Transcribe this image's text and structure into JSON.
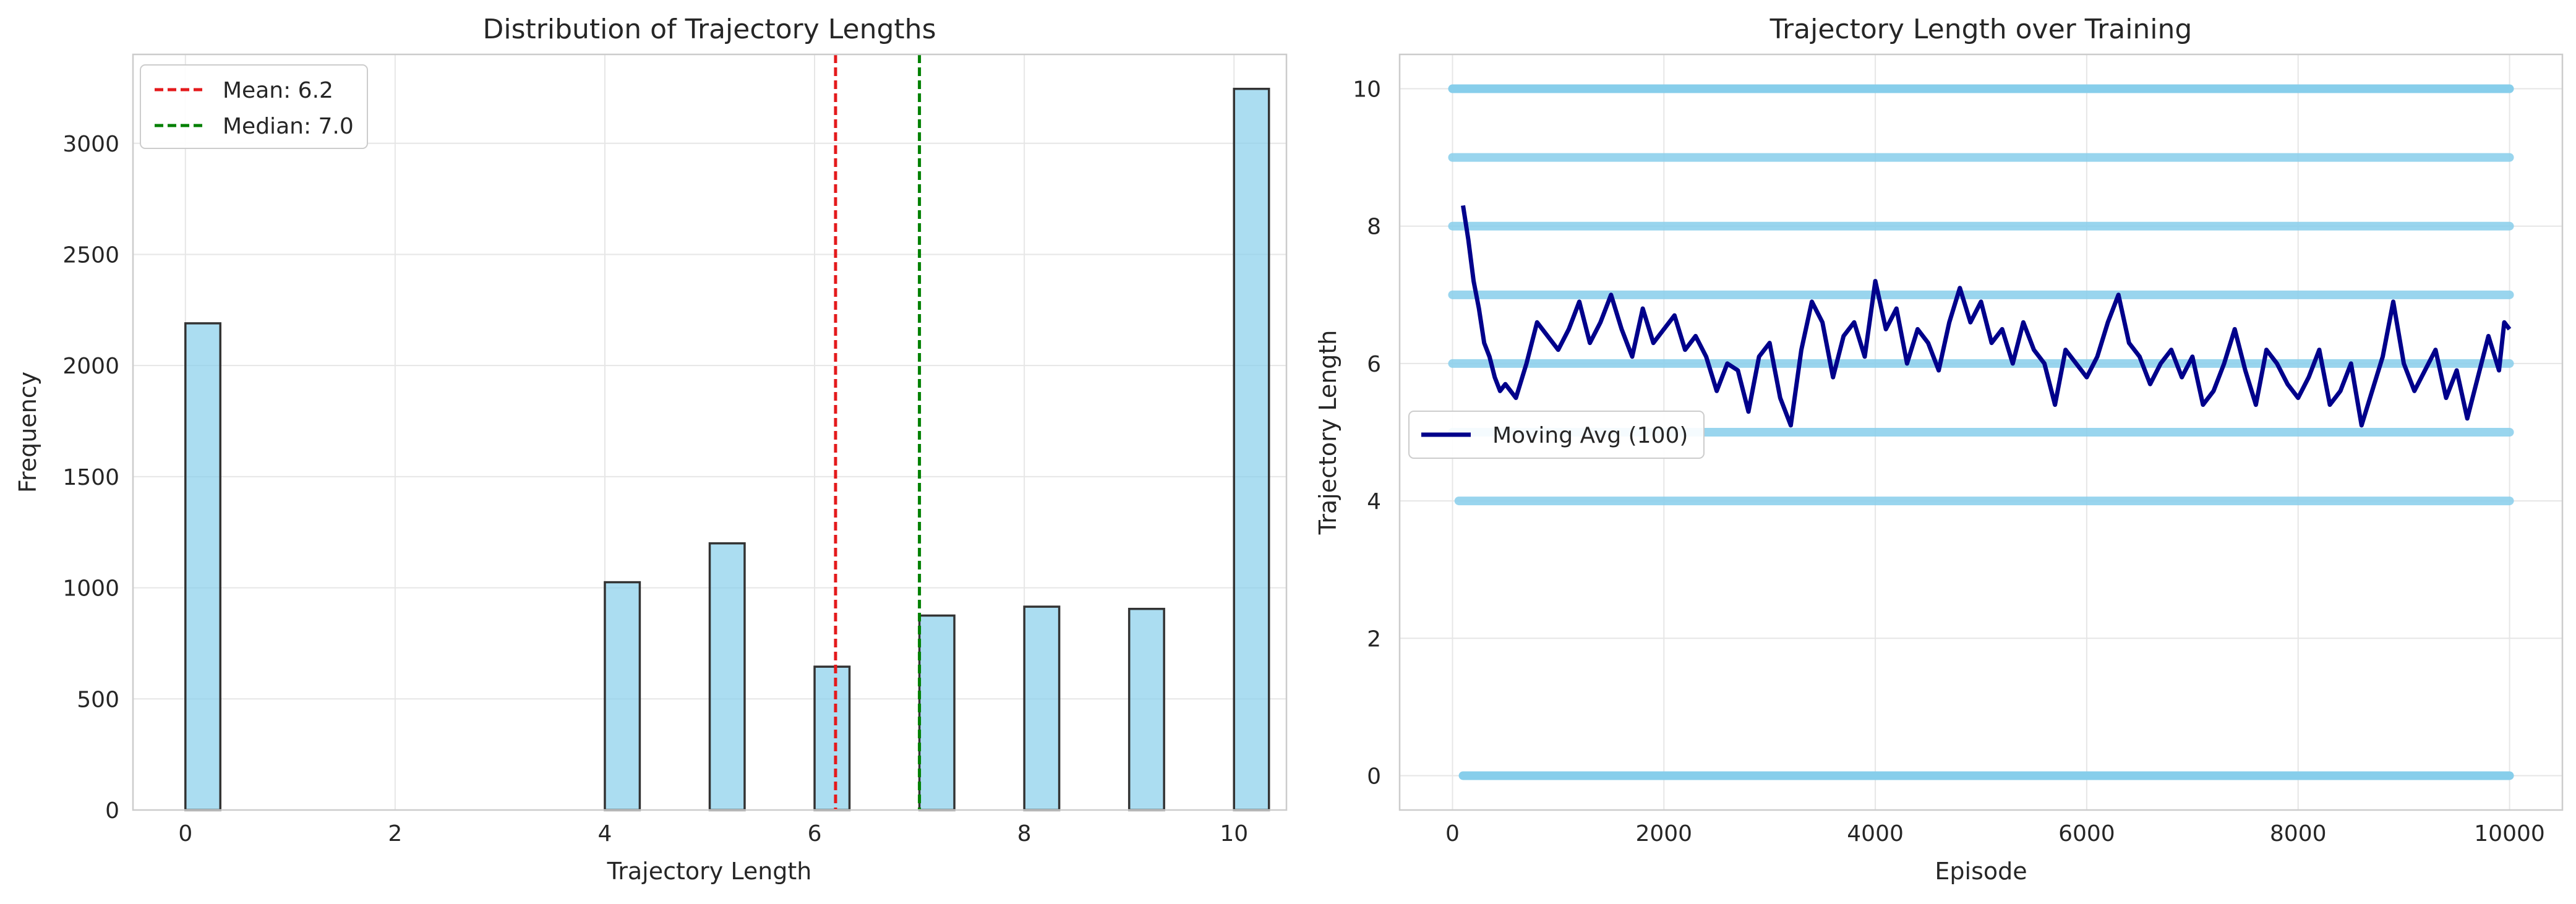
{
  "chart_data": [
    {
      "type": "bar",
      "title": "Distribution of Trajectory Lengths",
      "xlabel": "Trajectory Length",
      "ylabel": "Frequency",
      "xlim": [
        -0.5,
        10.5
      ],
      "ylim": [
        0,
        3400
      ],
      "xticks": [
        0,
        2,
        4,
        6,
        8,
        10
      ],
      "yticks": [
        0,
        500,
        1000,
        1500,
        2000,
        2500,
        3000
      ],
      "grid": true,
      "bar_color": "#87ceeb",
      "edge_color": "#333333",
      "bars": [
        {
          "x": 0,
          "value": 2190
        },
        {
          "x": 4,
          "value": 1025
        },
        {
          "x": 5,
          "value": 1200
        },
        {
          "x": 6,
          "value": 645
        },
        {
          "x": 7,
          "value": 875
        },
        {
          "x": 8,
          "value": 915
        },
        {
          "x": 9,
          "value": 905
        },
        {
          "x": 10,
          "value": 3245
        }
      ],
      "lines": [
        {
          "name": "Mean: 6.2",
          "x": 6.2,
          "color": "#e41a1c",
          "style": "dashed"
        },
        {
          "name": "Median: 7.0",
          "x": 7.0,
          "color": "#008000",
          "style": "dashed"
        }
      ],
      "legend": {
        "placement": "top-left",
        "entries": [
          "Mean: 6.2",
          "Median: 7.0"
        ]
      }
    },
    {
      "type": "scatter",
      "title": "Trajectory Length over Training",
      "xlabel": "Episode",
      "ylabel": "Trajectory Length",
      "xlim": [
        -500,
        10500
      ],
      "ylim": [
        -0.5,
        10.5
      ],
      "xticks": [
        0,
        2000,
        4000,
        6000,
        8000,
        10000
      ],
      "yticks": [
        0,
        2,
        4,
        6,
        8,
        10
      ],
      "grid": true,
      "scatter_color": "#87ceeb",
      "scatter_levels": [
        0,
        4,
        5,
        6,
        7,
        8,
        9,
        10
      ],
      "episodes": [
        0,
        10000
      ],
      "series": [
        {
          "name": "Moving Avg (100)",
          "color": "#00008b",
          "x": [
            100,
            150,
            200,
            250,
            300,
            350,
            400,
            450,
            500,
            600,
            700,
            800,
            900,
            1000,
            1100,
            1200,
            1300,
            1400,
            1500,
            1600,
            1700,
            1800,
            1900,
            2000,
            2100,
            2200,
            2300,
            2400,
            2500,
            2600,
            2700,
            2800,
            2900,
            3000,
            3100,
            3200,
            3300,
            3400,
            3500,
            3600,
            3700,
            3800,
            3900,
            4000,
            4100,
            4200,
            4300,
            4400,
            4500,
            4600,
            4700,
            4800,
            4900,
            5000,
            5100,
            5200,
            5300,
            5400,
            5500,
            5600,
            5700,
            5800,
            5900,
            6000,
            6100,
            6200,
            6300,
            6400,
            6500,
            6600,
            6700,
            6800,
            6900,
            7000,
            7100,
            7200,
            7300,
            7400,
            7500,
            7600,
            7700,
            7800,
            7900,
            8000,
            8100,
            8200,
            8300,
            8400,
            8500,
            8600,
            8700,
            8800,
            8900,
            9000,
            9100,
            9200,
            9300,
            9400,
            9500,
            9600,
            9700,
            9800,
            9900,
            9950,
            10000
          ],
          "y": [
            8.3,
            7.8,
            7.2,
            6.8,
            6.3,
            6.1,
            5.8,
            5.6,
            5.7,
            5.5,
            6.0,
            6.6,
            6.4,
            6.2,
            6.5,
            6.9,
            6.3,
            6.6,
            7.0,
            6.5,
            6.1,
            6.8,
            6.3,
            6.5,
            6.7,
            6.2,
            6.4,
            6.1,
            5.6,
            6.0,
            5.9,
            5.3,
            6.1,
            6.3,
            5.5,
            5.1,
            6.2,
            6.9,
            6.6,
            5.8,
            6.4,
            6.6,
            6.1,
            7.2,
            6.5,
            6.8,
            6.0,
            6.5,
            6.3,
            5.9,
            6.6,
            7.1,
            6.6,
            6.9,
            6.3,
            6.5,
            6.0,
            6.6,
            6.2,
            6.0,
            5.4,
            6.2,
            6.0,
            5.8,
            6.1,
            6.6,
            7.0,
            6.3,
            6.1,
            5.7,
            6.0,
            6.2,
            5.8,
            6.1,
            5.4,
            5.6,
            6.0,
            6.5,
            5.9,
            5.4,
            6.2,
            6.0,
            5.7,
            5.5,
            5.8,
            6.2,
            5.4,
            5.6,
            6.0,
            5.1,
            5.6,
            6.1,
            6.9,
            6.0,
            5.6,
            5.9,
            6.2,
            5.5,
            5.9,
            5.2,
            5.8,
            6.4,
            5.9,
            6.6,
            6.5
          ]
        }
      ],
      "legend": {
        "placement": "center-left",
        "entries": [
          "Moving Avg (100)"
        ]
      }
    }
  ]
}
